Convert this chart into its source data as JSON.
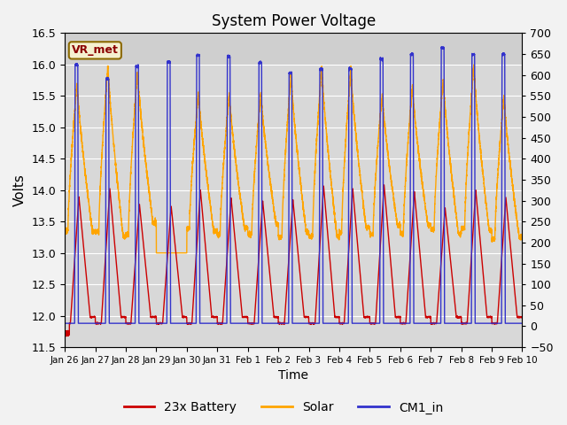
{
  "title": "System Power Voltage",
  "xlabel": "Time",
  "ylabel": "Volts",
  "ylim_left": [
    11.5,
    16.5
  ],
  "ylim_right": [
    -50,
    700
  ],
  "yticks_left": [
    11.5,
    12.0,
    12.5,
    13.0,
    13.5,
    14.0,
    14.5,
    15.0,
    15.5,
    16.0,
    16.5
  ],
  "yticks_right": [
    -50,
    0,
    50,
    100,
    150,
    200,
    250,
    300,
    350,
    400,
    450,
    500,
    550,
    600,
    650,
    700
  ],
  "xtick_labels": [
    "Jan 26",
    "Jan 27",
    "Jan 28",
    "Jan 29",
    "Jan 30",
    "Jan 31",
    "Feb 1",
    "Feb 2",
    "Feb 3",
    "Feb 4",
    "Feb 5",
    "Feb 6",
    "Feb 7",
    "Feb 8",
    "Feb 9",
    "Feb 10"
  ],
  "plot_bg_color": "#d8d8d8",
  "fig_bg_color": "#f2f2f2",
  "grid_color": "#ffffff",
  "colors": {
    "battery": "#cc0000",
    "solar": "#ffa500",
    "cm1": "#3333cc"
  },
  "legend_labels": [
    "23x Battery",
    "Solar",
    "CM1_in"
  ],
  "vr_met_label": "VR_met",
  "n_days": 15
}
